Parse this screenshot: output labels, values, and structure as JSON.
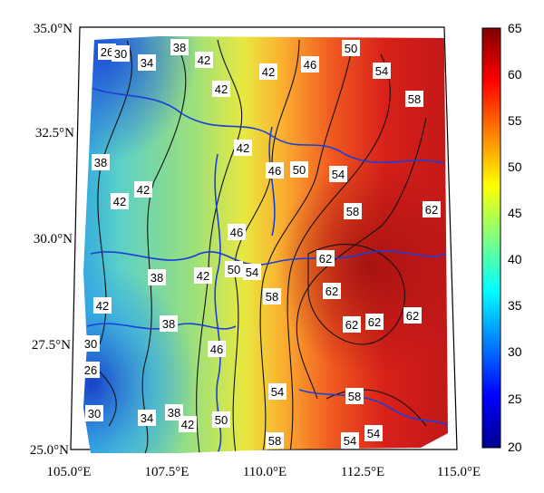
{
  "map": {
    "lon_ticks": [
      "105.0°E",
      "107.5°E",
      "110.0°E",
      "112.5°E",
      "115.0°E"
    ],
    "lat_ticks": [
      "35.0°N",
      "32.5°N",
      "30.0°N",
      "27.5°N",
      "25.0°N"
    ],
    "colorbar": {
      "ticks": [
        "65",
        "60",
        "55",
        "50",
        "45",
        "40",
        "35",
        "30",
        "25",
        "20"
      ],
      "min": 20,
      "max": 65,
      "colormap": "jet"
    },
    "contour_labels": [
      "26",
      "30",
      "38",
      "34",
      "42",
      "42",
      "42",
      "46",
      "50",
      "54",
      "58",
      "42",
      "46",
      "50",
      "54",
      "58",
      "62",
      "38",
      "42",
      "42",
      "46",
      "62",
      "38",
      "42",
      "50",
      "54",
      "58",
      "62",
      "42",
      "38",
      "62",
      "62",
      "62",
      "30",
      "46",
      "26",
      "54",
      "58",
      "30",
      "34",
      "38",
      "42",
      "50",
      "58",
      "54",
      "54"
    ]
  }
}
